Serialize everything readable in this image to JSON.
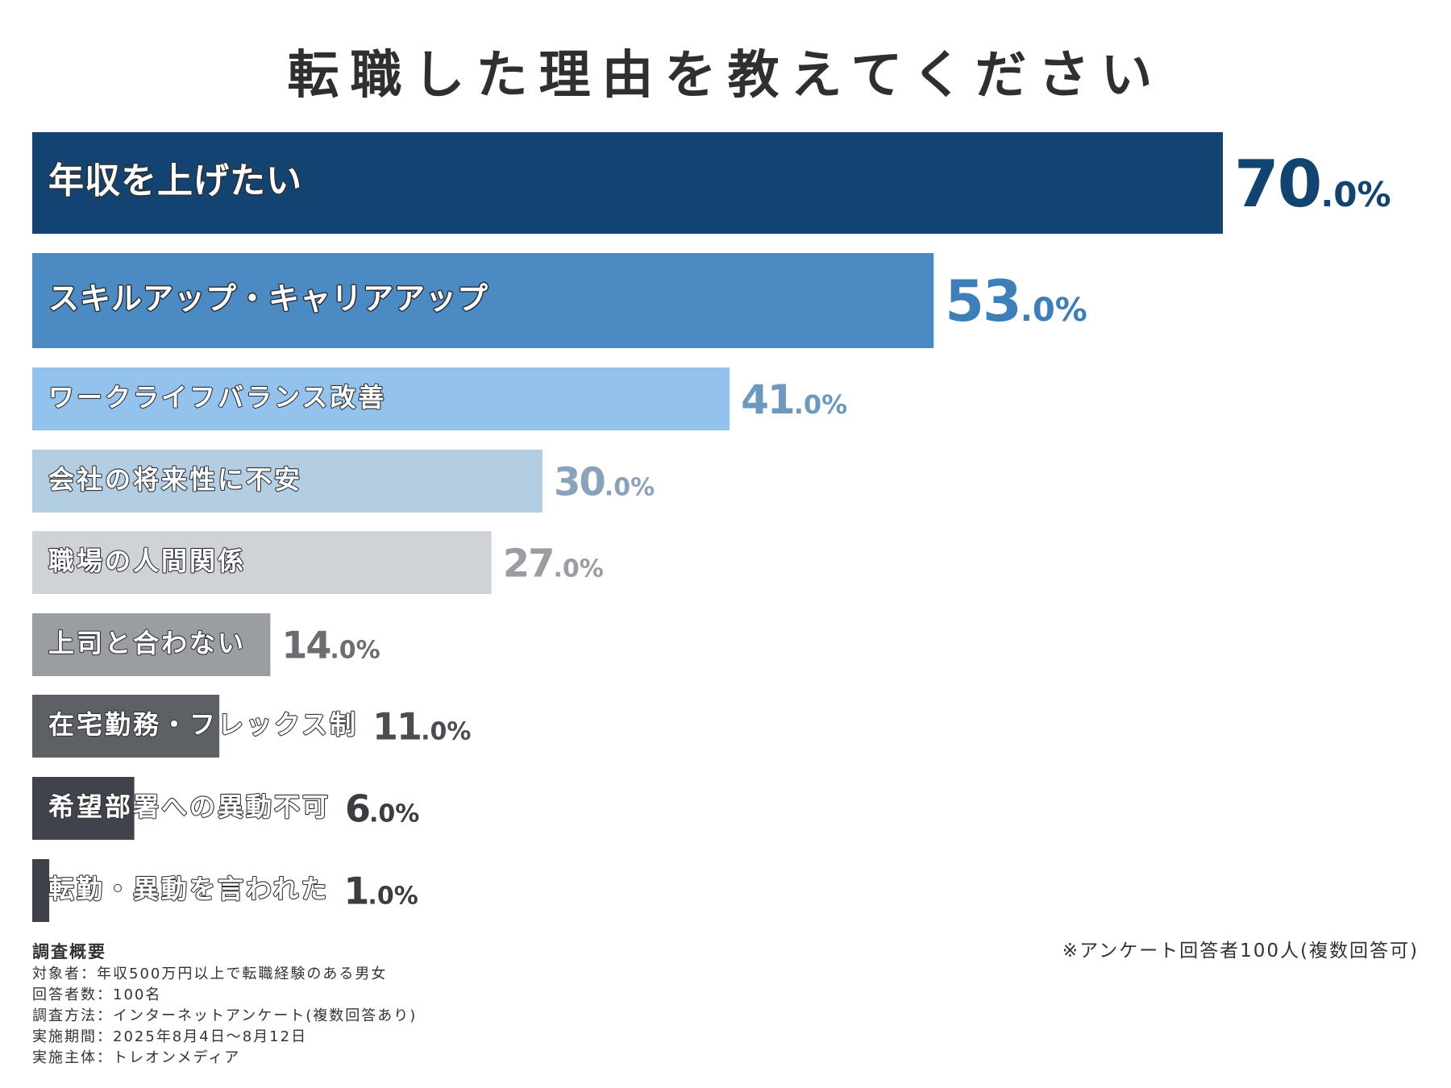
{
  "title": "転職した理由を教えてください",
  "chart_data": {
    "type": "bar",
    "orientation": "horizontal",
    "title": "転職した理由を教えてください",
    "unit": "%",
    "xlim": [
      0,
      100
    ],
    "grid": false,
    "legend": "none",
    "categories": [
      "年収を上げたい",
      "スキルアップ・キャリアアップ",
      "ワークライフバランス改善",
      "会社の将来性に不安",
      "職場の人間関係",
      "上司と合わない",
      "在宅勤務・フレックス制",
      "希望部署への異動不可",
      "転勤・異動を言われた"
    ],
    "values": [
      70.0,
      53.0,
      41.0,
      30.0,
      27.0,
      14.0,
      11.0,
      6.0,
      1.0
    ],
    "value_labels": [
      {
        "int": "70",
        "dec": ".0%"
      },
      {
        "int": "53",
        "dec": ".0%"
      },
      {
        "int": "41",
        "dec": ".0%"
      },
      {
        "int": "30",
        "dec": ".0%"
      },
      {
        "int": "27",
        "dec": ".0%"
      },
      {
        "int": "14",
        "dec": ".0%"
      },
      {
        "int": "11",
        "dec": ".0%"
      },
      {
        "int": "6",
        "dec": ".0%"
      },
      {
        "int": "1",
        "dec": ".0%"
      }
    ],
    "bar_colors": [
      "#134471",
      "#4b8ac3",
      "#93c2ec",
      "#b3cde3",
      "#cfd3d8",
      "#9a9ea3",
      "#5d6166",
      "#404349",
      "#3e4147"
    ],
    "value_colors": [
      "#134471",
      "#3f7fb9",
      "#6f98be",
      "#8ba3ba",
      "#9a9ea3",
      "#6a6e73",
      "#4a4d52",
      "#3a3d42",
      "#3a3d42"
    ]
  },
  "note": "※アンケート回答者100人(複数回答可)",
  "survey": {
    "heading": "調査概要",
    "lines": [
      "対象者：年収500万円以上で転職経験のある男女",
      "回答者数：100名",
      "調査方法：インターネットアンケート(複数回答あり)",
      "実施期間：2025年8月4日〜8月12日",
      "実施主体：トレオンメディア"
    ]
  }
}
